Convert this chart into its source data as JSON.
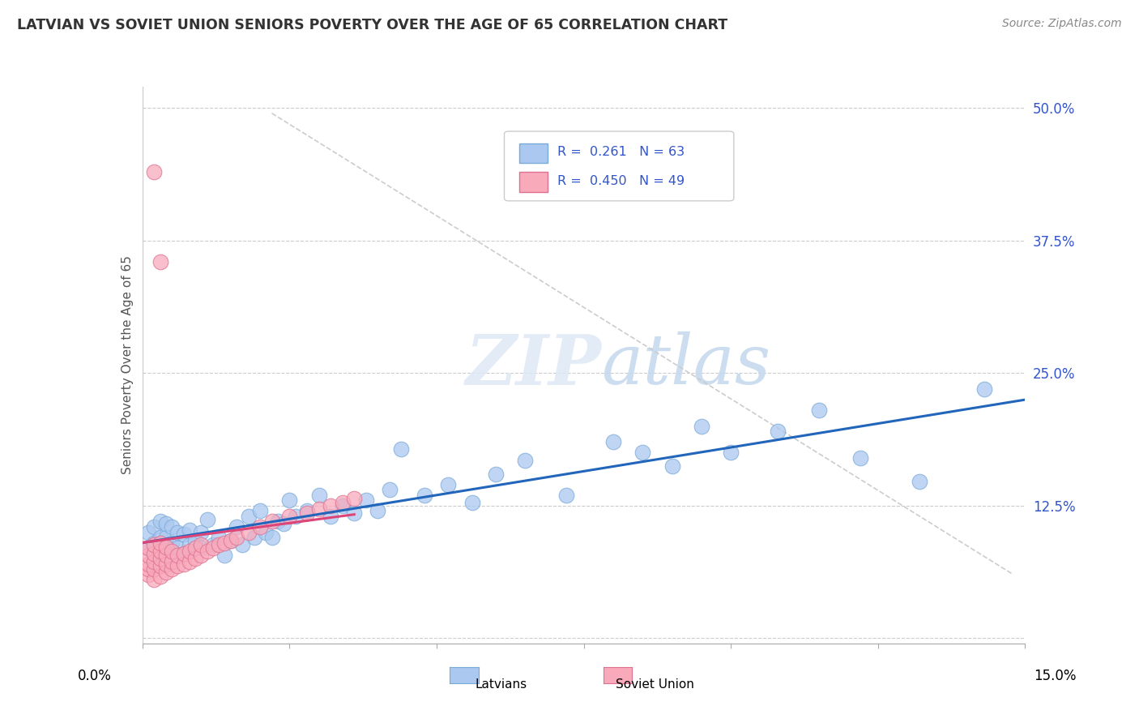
{
  "title": "LATVIAN VS SOVIET UNION SENIORS POVERTY OVER THE AGE OF 65 CORRELATION CHART",
  "source": "Source: ZipAtlas.com",
  "ylabel": "Seniors Poverty Over the Age of 65",
  "x_range": [
    0.0,
    0.15
  ],
  "y_range": [
    -0.005,
    0.52
  ],
  "y_ticks": [
    0.0,
    0.125,
    0.25,
    0.375,
    0.5
  ],
  "y_tick_labels": [
    "",
    "12.5%",
    "25.0%",
    "37.5%",
    "50.0%"
  ],
  "latvian_color": "#aac8f0",
  "latvian_edge_color": "#7aaad8",
  "soviet_color": "#f8aabb",
  "soviet_edge_color": "#e07090",
  "latvian_line_color": "#2266bb",
  "soviet_line_color": "#dd4477",
  "dash_line_color": "#cccccc",
  "watermark_color": "#ddeeff",
  "legend_color": "#3355cc",
  "grid_color": "#cccccc",
  "latvian_R": 0.261,
  "latvian_N": 63,
  "soviet_R": 0.45,
  "soviet_N": 49,
  "lv_x": [
    0.001,
    0.001,
    0.002,
    0.002,
    0.003,
    0.003,
    0.003,
    0.004,
    0.004,
    0.004,
    0.005,
    0.005,
    0.005,
    0.006,
    0.006,
    0.007,
    0.007,
    0.008,
    0.008,
    0.009,
    0.01,
    0.01,
    0.011,
    0.012,
    0.013,
    0.014,
    0.015,
    0.016,
    0.017,
    0.018,
    0.019,
    0.02,
    0.021,
    0.022,
    0.023,
    0.024,
    0.025,
    0.026,
    0.028,
    0.03,
    0.032,
    0.034,
    0.036,
    0.038,
    0.04,
    0.042,
    0.044,
    0.048,
    0.052,
    0.056,
    0.06,
    0.065,
    0.072,
    0.08,
    0.085,
    0.09,
    0.095,
    0.1,
    0.108,
    0.115,
    0.122,
    0.132,
    0.143
  ],
  "lv_y": [
    0.085,
    0.1,
    0.09,
    0.105,
    0.08,
    0.095,
    0.11,
    0.085,
    0.095,
    0.108,
    0.075,
    0.09,
    0.105,
    0.085,
    0.1,
    0.08,
    0.098,
    0.088,
    0.102,
    0.092,
    0.085,
    0.1,
    0.112,
    0.088,
    0.095,
    0.078,
    0.092,
    0.105,
    0.088,
    0.115,
    0.095,
    0.12,
    0.1,
    0.095,
    0.11,
    0.108,
    0.13,
    0.115,
    0.12,
    0.135,
    0.115,
    0.125,
    0.118,
    0.13,
    0.12,
    0.14,
    0.178,
    0.135,
    0.145,
    0.128,
    0.155,
    0.168,
    0.135,
    0.185,
    0.175,
    0.162,
    0.2,
    0.175,
    0.195,
    0.215,
    0.17,
    0.148,
    0.235
  ],
  "su_x": [
    0.001,
    0.001,
    0.001,
    0.001,
    0.001,
    0.002,
    0.002,
    0.002,
    0.002,
    0.002,
    0.003,
    0.003,
    0.003,
    0.003,
    0.003,
    0.004,
    0.004,
    0.004,
    0.004,
    0.005,
    0.005,
    0.005,
    0.006,
    0.006,
    0.007,
    0.007,
    0.008,
    0.008,
    0.009,
    0.009,
    0.01,
    0.01,
    0.011,
    0.012,
    0.013,
    0.014,
    0.015,
    0.016,
    0.018,
    0.02,
    0.022,
    0.025,
    0.028,
    0.03,
    0.032,
    0.034,
    0.036,
    0.002,
    0.003
  ],
  "su_y": [
    0.06,
    0.065,
    0.07,
    0.078,
    0.085,
    0.055,
    0.065,
    0.072,
    0.08,
    0.088,
    0.058,
    0.068,
    0.075,
    0.082,
    0.09,
    0.062,
    0.07,
    0.078,
    0.086,
    0.065,
    0.072,
    0.082,
    0.068,
    0.078,
    0.07,
    0.08,
    0.072,
    0.082,
    0.075,
    0.085,
    0.078,
    0.088,
    0.082,
    0.085,
    0.088,
    0.09,
    0.092,
    0.095,
    0.1,
    0.105,
    0.11,
    0.115,
    0.118,
    0.122,
    0.125,
    0.128,
    0.132,
    0.44,
    0.355
  ]
}
